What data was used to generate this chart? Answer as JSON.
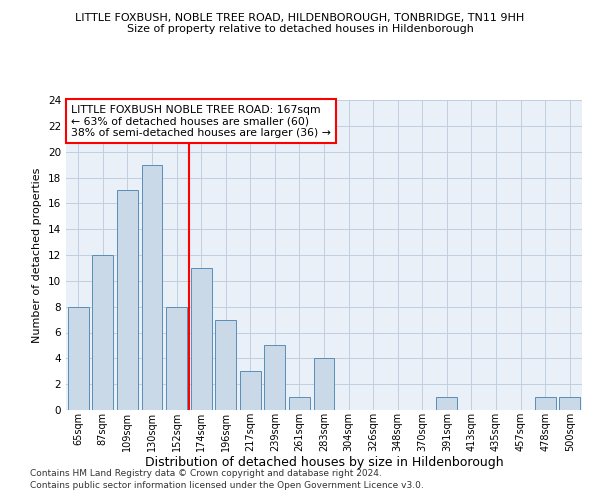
{
  "title": "LITTLE FOXBUSH, NOBLE TREE ROAD, HILDENBOROUGH, TONBRIDGE, TN11 9HH",
  "subtitle": "Size of property relative to detached houses in Hildenborough",
  "xlabel": "Distribution of detached houses by size in Hildenborough",
  "ylabel": "Number of detached properties",
  "footnote1": "Contains HM Land Registry data © Crown copyright and database right 2024.",
  "footnote2": "Contains public sector information licensed under the Open Government Licence v3.0.",
  "bar_labels": [
    "65sqm",
    "87sqm",
    "109sqm",
    "130sqm",
    "152sqm",
    "174sqm",
    "196sqm",
    "217sqm",
    "239sqm",
    "261sqm",
    "283sqm",
    "304sqm",
    "326sqm",
    "348sqm",
    "370sqm",
    "391sqm",
    "413sqm",
    "435sqm",
    "457sqm",
    "478sqm",
    "500sqm"
  ],
  "bar_values": [
    8,
    12,
    17,
    19,
    8,
    11,
    7,
    3,
    5,
    1,
    4,
    0,
    0,
    0,
    0,
    1,
    0,
    0,
    0,
    1,
    1
  ],
  "bar_color": "#c9d9e8",
  "bar_edge_color": "#5b8db8",
  "property_line_x": 4.5,
  "property_line_label": "LITTLE FOXBUSH NOBLE TREE ROAD: 167sqm",
  "annotation_line1": "← 63% of detached houses are smaller (60)",
  "annotation_line2": "38% of semi-detached houses are larger (36) →",
  "annotation_box_color": "white",
  "annotation_box_edge_color": "red",
  "vline_color": "red",
  "ylim": [
    0,
    24
  ],
  "yticks": [
    0,
    2,
    4,
    6,
    8,
    10,
    12,
    14,
    16,
    18,
    20,
    22,
    24
  ],
  "grid_color": "#c0cfe0",
  "bg_color": "#eaf0f8"
}
